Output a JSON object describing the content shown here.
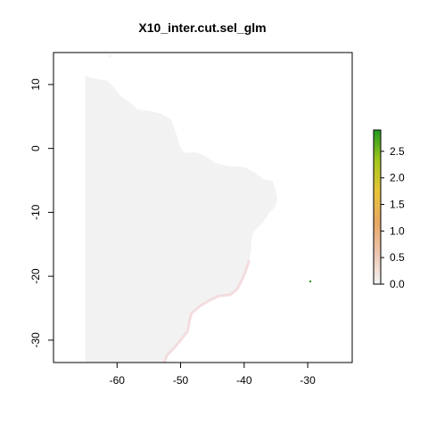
{
  "title": "X10_inter.cut.sel_glm",
  "x_ticks": [
    {
      "value": -60,
      "label": "-60"
    },
    {
      "value": -50,
      "label": "-50"
    },
    {
      "value": -40,
      "label": "-40"
    },
    {
      "value": -30,
      "label": "-30"
    }
  ],
  "y_ticks": [
    {
      "value": 10,
      "label": "10"
    },
    {
      "value": 0,
      "label": "0"
    },
    {
      "value": -10,
      "label": "-10"
    },
    {
      "value": -20,
      "label": "-20"
    },
    {
      "value": -30,
      "label": "-30"
    }
  ],
  "legend": {
    "min": 0.0,
    "max": 2.9,
    "colors": [
      "#f2f2f2",
      "#ecc6b2",
      "#e6a764",
      "#e8c53a",
      "#a4c61b",
      "#1f9a1f"
    ],
    "ticks": [
      {
        "value": 0.0,
        "label": "0.0"
      },
      {
        "value": 0.5,
        "label": "0.5"
      },
      {
        "value": 1.0,
        "label": "1.0"
      },
      {
        "value": 1.5,
        "label": "1.5"
      },
      {
        "value": 2.0,
        "label": "2.0"
      },
      {
        "value": 2.5,
        "label": "2.5"
      }
    ]
  },
  "map": {
    "extent": {
      "lon": [
        -70,
        -23
      ],
      "lat": [
        -33.5,
        15
      ]
    },
    "land_color": "#f2f2f2",
    "coast_tint": "#f3d9dc",
    "hotspot": {
      "lon": -29.6,
      "lat": -20.8,
      "value": 2.9,
      "color": "#1f9a1f"
    }
  }
}
